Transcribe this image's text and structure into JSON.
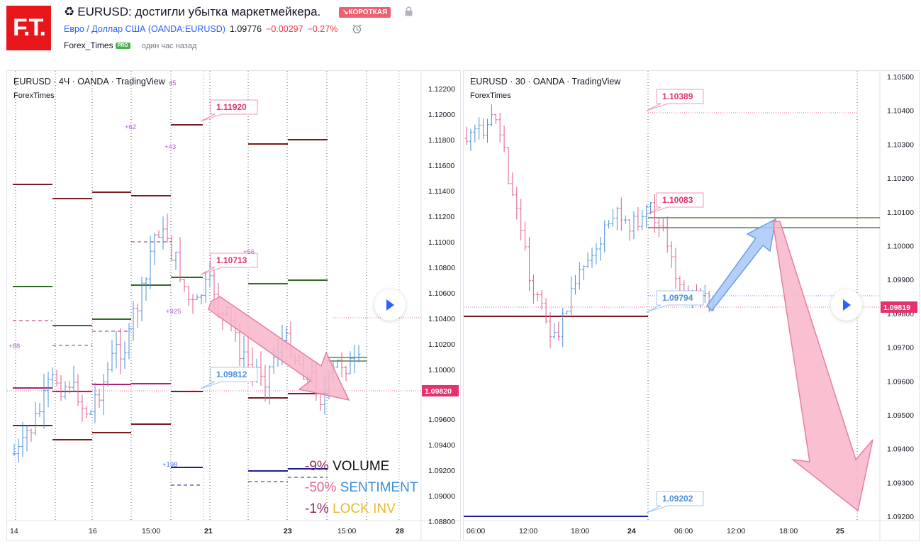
{
  "idea": {
    "logo_text": "F.T.",
    "title_icon": "♻",
    "title": "EURUSD: достигли убытка маркетмейкера.",
    "direction_badge": "↘КОРОТКАЯ",
    "symbol_name": "Евро / Доллар США",
    "symbol_ticker": "(OANDA:EURUSD)",
    "last_price": "1.09776",
    "change": "−0.00297",
    "change_pct": "−0.27%",
    "author": "Forex_Times",
    "author_badge": "PRO",
    "published": "один час назад"
  },
  "colors": {
    "bull": "#4a90d9",
    "bear": "#e05c8c",
    "red_level": "#7a1b1b",
    "green_level": "#2e6b23",
    "magenta_level": "#b0216f",
    "navy_level": "#1c1c9a",
    "arrow_fill": "#f7b5c8",
    "arrow_stroke": "#e87fa2",
    "blue_arrow_fill": "#a8c8f7",
    "blue_arrow_stroke": "#6a9de8",
    "price_tag": "#e5326f"
  },
  "chart1": {
    "title": "EURUSD · 4Ч · OANDA · TradingView",
    "subtitle": "ForexTimes",
    "current_price": "1.09820",
    "y_ticks": [
      "1.12200",
      "1.12000",
      "1.11800",
      "1.11600",
      "1.11400",
      "1.11200",
      "1.11000",
      "1.10800",
      "1.10600",
      "1.10400",
      "1.10200",
      "1.10000",
      "1.09600",
      "1.09400",
      "1.09200",
      "1.09000",
      "1.08800"
    ],
    "x_ticks": [
      "14",
      "16",
      "15:00",
      "21",
      "23",
      "15:00",
      "28"
    ],
    "callouts": [
      "1.11920",
      "1.10713",
      "1.09812"
    ],
    "small_labels": [
      "+62",
      "+43",
      "45",
      "+56",
      "+925",
      "+88",
      "+198"
    ],
    "stats": [
      {
        "pct": "-9%",
        "label": "VOLUME"
      },
      {
        "pct": "-50%",
        "label": "SENTIMENT"
      },
      {
        "pct": "-1%",
        "label": "LOCK INV"
      }
    ]
  },
  "chart2": {
    "title": "EURUSD · 30 · OANDA · TradingView",
    "subtitle": "ForexTimes",
    "current_price": "1.09819",
    "y_ticks": [
      "1.10500",
      "1.10400",
      "1.10300",
      "1.10200",
      "1.10100",
      "1.10000",
      "1.09900",
      "1.09800",
      "1.09700",
      "1.09600",
      "1.09500",
      "1.09400",
      "1.09300",
      "1.09200"
    ],
    "x_ticks": [
      "06:00",
      "12:00",
      "18:00",
      "24",
      "06:00",
      "12:00",
      "18:00",
      "25"
    ],
    "callouts": [
      "1.10389",
      "1.10083",
      "1.09794",
      "1.09202"
    ]
  }
}
